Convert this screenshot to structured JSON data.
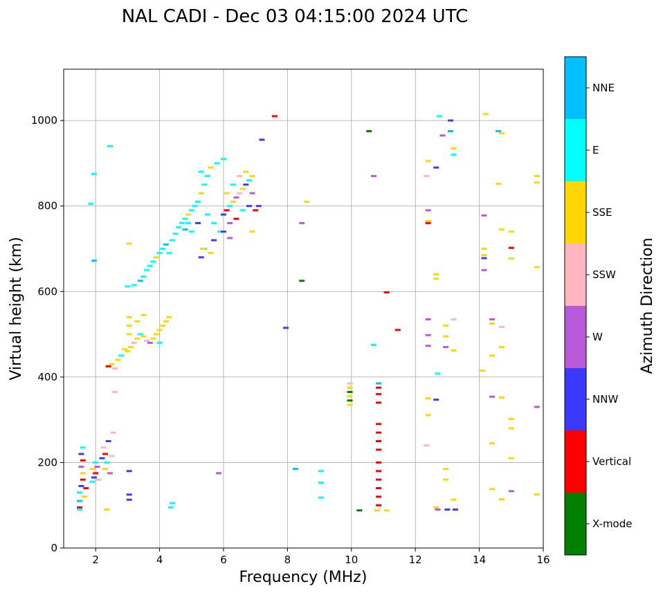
{
  "chart_data": {
    "type": "scatter",
    "title": "NAL CADI - Dec 03 04:15:00 2024 UTC",
    "xlabel": "Frequency (MHz)",
    "ylabel": "Virtual height (km)",
    "xlim": [
      1.0,
      16.0
    ],
    "ylim": [
      0,
      1120
    ],
    "xticks": [
      2,
      4,
      6,
      8,
      10,
      12,
      14,
      16
    ],
    "yticks": [
      0,
      200,
      400,
      600,
      800,
      1000
    ],
    "grid": true,
    "colorbar": {
      "title": "Azimuth Direction",
      "categories": [
        {
          "label": "X-mode",
          "color": "#008000"
        },
        {
          "label": "Vertical",
          "color": "#ff0000"
        },
        {
          "label": "NNW",
          "color": "#3a3aff"
        },
        {
          "label": "W",
          "color": "#b65ad8"
        },
        {
          "label": "SSW",
          "color": "#ffb6c1"
        },
        {
          "label": "SSE",
          "color": "#ffd700"
        },
        {
          "label": "E",
          "color": "#00ffff"
        },
        {
          "label": "NNE",
          "color": "#00bfff"
        }
      ]
    },
    "points": [
      [
        1.5,
        95,
        "Vertical"
      ],
      [
        1.5,
        110,
        "NNE"
      ],
      [
        1.5,
        130,
        "E"
      ],
      [
        1.55,
        145,
        "NNW"
      ],
      [
        1.6,
        160,
        "Vertical"
      ],
      [
        1.6,
        175,
        "SSE"
      ],
      [
        1.55,
        190,
        "W"
      ],
      [
        1.6,
        205,
        "Vertical"
      ],
      [
        1.55,
        220,
        "NNW"
      ],
      [
        1.6,
        235,
        "E"
      ],
      [
        1.65,
        120,
        "SSE"
      ],
      [
        1.7,
        140,
        "Vertical"
      ],
      [
        1.5,
        90,
        "E"
      ],
      [
        1.9,
        155,
        "E"
      ],
      [
        1.95,
        165,
        "NNW"
      ],
      [
        2.0,
        175,
        "Vertical"
      ],
      [
        1.9,
        185,
        "SSE"
      ],
      [
        2.05,
        190,
        "W"
      ],
      [
        2.0,
        200,
        "E"
      ],
      [
        2.1,
        160,
        "SSW"
      ],
      [
        2.2,
        210,
        "NNW"
      ],
      [
        2.3,
        220,
        "Vertical"
      ],
      [
        2.25,
        235,
        "SSW"
      ],
      [
        2.4,
        250,
        "NNW"
      ],
      [
        2.35,
        200,
        "E"
      ],
      [
        2.5,
        215,
        "SSW"
      ],
      [
        2.3,
        185,
        "SSE"
      ],
      [
        2.45,
        175,
        "W"
      ],
      [
        2.55,
        270,
        "SSW"
      ],
      [
        2.35,
        90,
        "SSE"
      ],
      [
        1.85,
        805,
        "E"
      ],
      [
        1.95,
        875,
        "E"
      ],
      [
        1.95,
        672,
        "NNE"
      ],
      [
        2.45,
        940,
        "E"
      ],
      [
        2.6,
        365,
        "SSW"
      ],
      [
        2.4,
        425,
        "Vertical"
      ],
      [
        2.5,
        430,
        "SSE"
      ],
      [
        2.6,
        420,
        "SSW"
      ],
      [
        2.7,
        440,
        "SSE"
      ],
      [
        2.8,
        450,
        "E"
      ],
      [
        2.9,
        465,
        "SSE"
      ],
      [
        3.0,
        460,
        "SSE"
      ],
      [
        3.1,
        470,
        "SSE"
      ],
      [
        3.2,
        480,
        "SSW"
      ],
      [
        3.3,
        490,
        "SSE"
      ],
      [
        3.4,
        500,
        "E"
      ],
      [
        3.5,
        495,
        "SSE"
      ],
      [
        3.6,
        485,
        "SSW"
      ],
      [
        3.7,
        480,
        "W"
      ],
      [
        3.8,
        490,
        "SSE"
      ],
      [
        3.9,
        500,
        "SSE"
      ],
      [
        4.0,
        510,
        "SSE"
      ],
      [
        4.1,
        520,
        "SSE"
      ],
      [
        4.2,
        530,
        "SSE"
      ],
      [
        4.3,
        540,
        "SSE"
      ],
      [
        3.05,
        520,
        "SSE"
      ],
      [
        3.05,
        540,
        "SSE"
      ],
      [
        3.05,
        500,
        "SSE"
      ],
      [
        3.3,
        530,
        "SSE"
      ],
      [
        3.5,
        545,
        "SSE"
      ],
      [
        4.0,
        480,
        "E"
      ],
      [
        3.0,
        612,
        "E"
      ],
      [
        3.2,
        615,
        "E"
      ],
      [
        3.4,
        625,
        "NNE"
      ],
      [
        3.5,
        635,
        "E"
      ],
      [
        3.6,
        650,
        "E"
      ],
      [
        3.7,
        660,
        "E"
      ],
      [
        3.8,
        670,
        "E"
      ],
      [
        3.9,
        680,
        "SSE"
      ],
      [
        4.0,
        690,
        "E"
      ],
      [
        4.1,
        700,
        "E"
      ],
      [
        4.2,
        710,
        "NNE"
      ],
      [
        4.3,
        690,
        "E"
      ],
      [
        4.4,
        720,
        "E"
      ],
      [
        4.5,
        735,
        "E"
      ],
      [
        4.6,
        750,
        "E"
      ],
      [
        4.7,
        760,
        "E"
      ],
      [
        4.8,
        770,
        "E"
      ],
      [
        4.9,
        780,
        "SSE"
      ],
      [
        5.0,
        790,
        "E"
      ],
      [
        5.1,
        800,
        "E"
      ],
      [
        5.2,
        810,
        "E"
      ],
      [
        5.3,
        830,
        "SSE"
      ],
      [
        5.4,
        850,
        "E"
      ],
      [
        5.5,
        870,
        "E"
      ],
      [
        5.3,
        880,
        "E"
      ],
      [
        5.6,
        890,
        "SSE"
      ],
      [
        5.8,
        900,
        "E"
      ],
      [
        6.0,
        910,
        "E"
      ],
      [
        3.05,
        712,
        "SSE"
      ],
      [
        5.5,
        780,
        "E"
      ],
      [
        5.7,
        760,
        "E"
      ],
      [
        5.9,
        740,
        "E"
      ],
      [
        5.0,
        740,
        "E"
      ],
      [
        4.9,
        760,
        "E"
      ],
      [
        4.8,
        745,
        "NNE"
      ],
      [
        5.2,
        760,
        "NNW"
      ],
      [
        5.4,
        700,
        "E"
      ],
      [
        5.6,
        690,
        "SSE"
      ],
      [
        6.0,
        780,
        "NNW"
      ],
      [
        6.1,
        790,
        "Vertical"
      ],
      [
        6.2,
        800,
        "E"
      ],
      [
        6.3,
        810,
        "SSE"
      ],
      [
        6.4,
        820,
        "W"
      ],
      [
        6.5,
        830,
        "SSW"
      ],
      [
        6.6,
        840,
        "SSE"
      ],
      [
        6.7,
        850,
        "NNW"
      ],
      [
        6.8,
        860,
        "E"
      ],
      [
        6.9,
        870,
        "SSE"
      ],
      [
        6.2,
        760,
        "W"
      ],
      [
        6.4,
        770,
        "Vertical"
      ],
      [
        6.6,
        790,
        "E"
      ],
      [
        6.8,
        800,
        "NNW"
      ],
      [
        7.0,
        790,
        "Vertical"
      ],
      [
        6.1,
        830,
        "SSE"
      ],
      [
        6.3,
        850,
        "E"
      ],
      [
        6.5,
        870,
        "SSW"
      ],
      [
        6.7,
        880,
        "SSE"
      ],
      [
        6.9,
        830,
        "W"
      ],
      [
        6.0,
        740,
        "NNW"
      ],
      [
        6.2,
        725,
        "W"
      ],
      [
        6.9,
        740,
        "SSE"
      ],
      [
        7.1,
        800,
        "NNW"
      ],
      [
        5.7,
        720,
        "NNW"
      ],
      [
        7.6,
        1010,
        "Vertical"
      ],
      [
        7.2,
        955,
        "NNW"
      ],
      [
        8.6,
        810,
        "SSE"
      ],
      [
        8.45,
        760,
        "W"
      ],
      [
        8.45,
        625,
        "X-mode"
      ],
      [
        7.95,
        515,
        "NNW"
      ],
      [
        8.25,
        185,
        "NNE"
      ],
      [
        9.05,
        180,
        "E"
      ],
      [
        9.05,
        153,
        "E"
      ],
      [
        9.05,
        118,
        "E"
      ],
      [
        10.55,
        975,
        "X-mode"
      ],
      [
        10.7,
        870,
        "W"
      ],
      [
        10.7,
        475,
        "E"
      ],
      [
        11.1,
        598,
        "Vertical"
      ],
      [
        11.45,
        510,
        "Vertical"
      ],
      [
        9.95,
        335,
        "SSE"
      ],
      [
        9.95,
        345,
        "X-mode"
      ],
      [
        9.95,
        355,
        "SSE"
      ],
      [
        9.95,
        365,
        "X-mode"
      ],
      [
        9.95,
        375,
        "SSE"
      ],
      [
        9.95,
        385,
        "SSW"
      ],
      [
        10.85,
        100,
        "Vertical"
      ],
      [
        10.85,
        120,
        "Vertical"
      ],
      [
        10.85,
        140,
        "Vertical"
      ],
      [
        10.85,
        160,
        "Vertical"
      ],
      [
        10.85,
        180,
        "Vertical"
      ],
      [
        10.85,
        200,
        "Vertical"
      ],
      [
        10.85,
        230,
        "Vertical"
      ],
      [
        10.85,
        250,
        "Vertical"
      ],
      [
        10.85,
        270,
        "Vertical"
      ],
      [
        10.85,
        290,
        "Vertical"
      ],
      [
        10.85,
        340,
        "Vertical"
      ],
      [
        10.85,
        360,
        "Vertical"
      ],
      [
        10.85,
        375,
        "Vertical"
      ],
      [
        10.85,
        385,
        "NNE"
      ],
      [
        10.8,
        88,
        "SSE"
      ],
      [
        11.1,
        88,
        "SSE"
      ],
      [
        10.25,
        88,
        "X-mode"
      ],
      [
        12.75,
        1010,
        "E"
      ],
      [
        13.1,
        1000,
        "NNW"
      ],
      [
        12.85,
        965,
        "W"
      ],
      [
        13.1,
        975,
        "NNE"
      ],
      [
        13.2,
        935,
        "SSE"
      ],
      [
        13.2,
        920,
        "E"
      ],
      [
        12.4,
        905,
        "SSE"
      ],
      [
        12.65,
        890,
        "NNW"
      ],
      [
        12.35,
        870,
        "SSW"
      ],
      [
        12.4,
        790,
        "W"
      ],
      [
        12.4,
        765,
        "SSE"
      ],
      [
        12.4,
        760,
        "Vertical"
      ],
      [
        12.65,
        640,
        "SSE"
      ],
      [
        12.65,
        630,
        "SSE"
      ],
      [
        12.4,
        535,
        "W"
      ],
      [
        12.95,
        520,
        "SSE"
      ],
      [
        13.2,
        535,
        "SSW"
      ],
      [
        12.4,
        498,
        "W"
      ],
      [
        12.95,
        495,
        "SSE"
      ],
      [
        12.4,
        473,
        "W"
      ],
      [
        12.95,
        470,
        "W"
      ],
      [
        13.2,
        462,
        "SSE"
      ],
      [
        12.7,
        408,
        "E"
      ],
      [
        12.4,
        350,
        "SSE"
      ],
      [
        12.65,
        347,
        "NNW"
      ],
      [
        12.4,
        311,
        "SSE"
      ],
      [
        12.35,
        240,
        "SSW"
      ],
      [
        12.95,
        185,
        "SSE"
      ],
      [
        12.95,
        160,
        "SSE"
      ],
      [
        13.2,
        113,
        "SSE"
      ],
      [
        12.65,
        95,
        "SSE"
      ],
      [
        12.7,
        90,
        "W"
      ],
      [
        13.0,
        90,
        "NNW"
      ],
      [
        13.25,
        90,
        "NNW"
      ],
      [
        14.2,
        1015,
        "SSE"
      ],
      [
        14.6,
        975,
        "NNE"
      ],
      [
        14.7,
        970,
        "SSE"
      ],
      [
        14.6,
        852,
        "SSE"
      ],
      [
        14.15,
        778,
        "W"
      ],
      [
        14.7,
        745,
        "SSE"
      ],
      [
        15.0,
        740,
        "SSE"
      ],
      [
        15.0,
        702,
        "Vertical"
      ],
      [
        14.15,
        700,
        "SSE"
      ],
      [
        14.15,
        685,
        "SSE"
      ],
      [
        14.15,
        678,
        "NNW"
      ],
      [
        15.0,
        677,
        "SSE"
      ],
      [
        14.15,
        650,
        "W"
      ],
      [
        14.4,
        535,
        "W"
      ],
      [
        14.4,
        525,
        "SSE"
      ],
      [
        14.7,
        517,
        "SSW"
      ],
      [
        14.7,
        470,
        "SSE"
      ],
      [
        14.4,
        450,
        "SSE"
      ],
      [
        14.1,
        415,
        "SSE"
      ],
      [
        14.4,
        354,
        "W"
      ],
      [
        14.7,
        352,
        "SSE"
      ],
      [
        15.0,
        302,
        "SSE"
      ],
      [
        15.0,
        280,
        "SSE"
      ],
      [
        14.4,
        245,
        "SSE"
      ],
      [
        15.0,
        210,
        "SSE"
      ],
      [
        14.4,
        138,
        "SSE"
      ],
      [
        15.0,
        133,
        "W"
      ],
      [
        14.7,
        114,
        "SSE"
      ],
      [
        15.8,
        870,
        "SSE"
      ],
      [
        15.8,
        855,
        "SSE"
      ],
      [
        15.8,
        657,
        "SSE"
      ],
      [
        15.8,
        330,
        "W"
      ],
      [
        15.8,
        125,
        "SSE"
      ],
      [
        3.05,
        180,
        "NNW"
      ],
      [
        3.05,
        125,
        "NNW"
      ],
      [
        3.05,
        113,
        "NNW"
      ],
      [
        4.4,
        105,
        "E"
      ],
      [
        4.35,
        95,
        "E"
      ],
      [
        5.85,
        175,
        "W"
      ],
      [
        5.3,
        680,
        "NNW"
      ],
      [
        5.35,
        700,
        "SSE"
      ]
    ]
  }
}
